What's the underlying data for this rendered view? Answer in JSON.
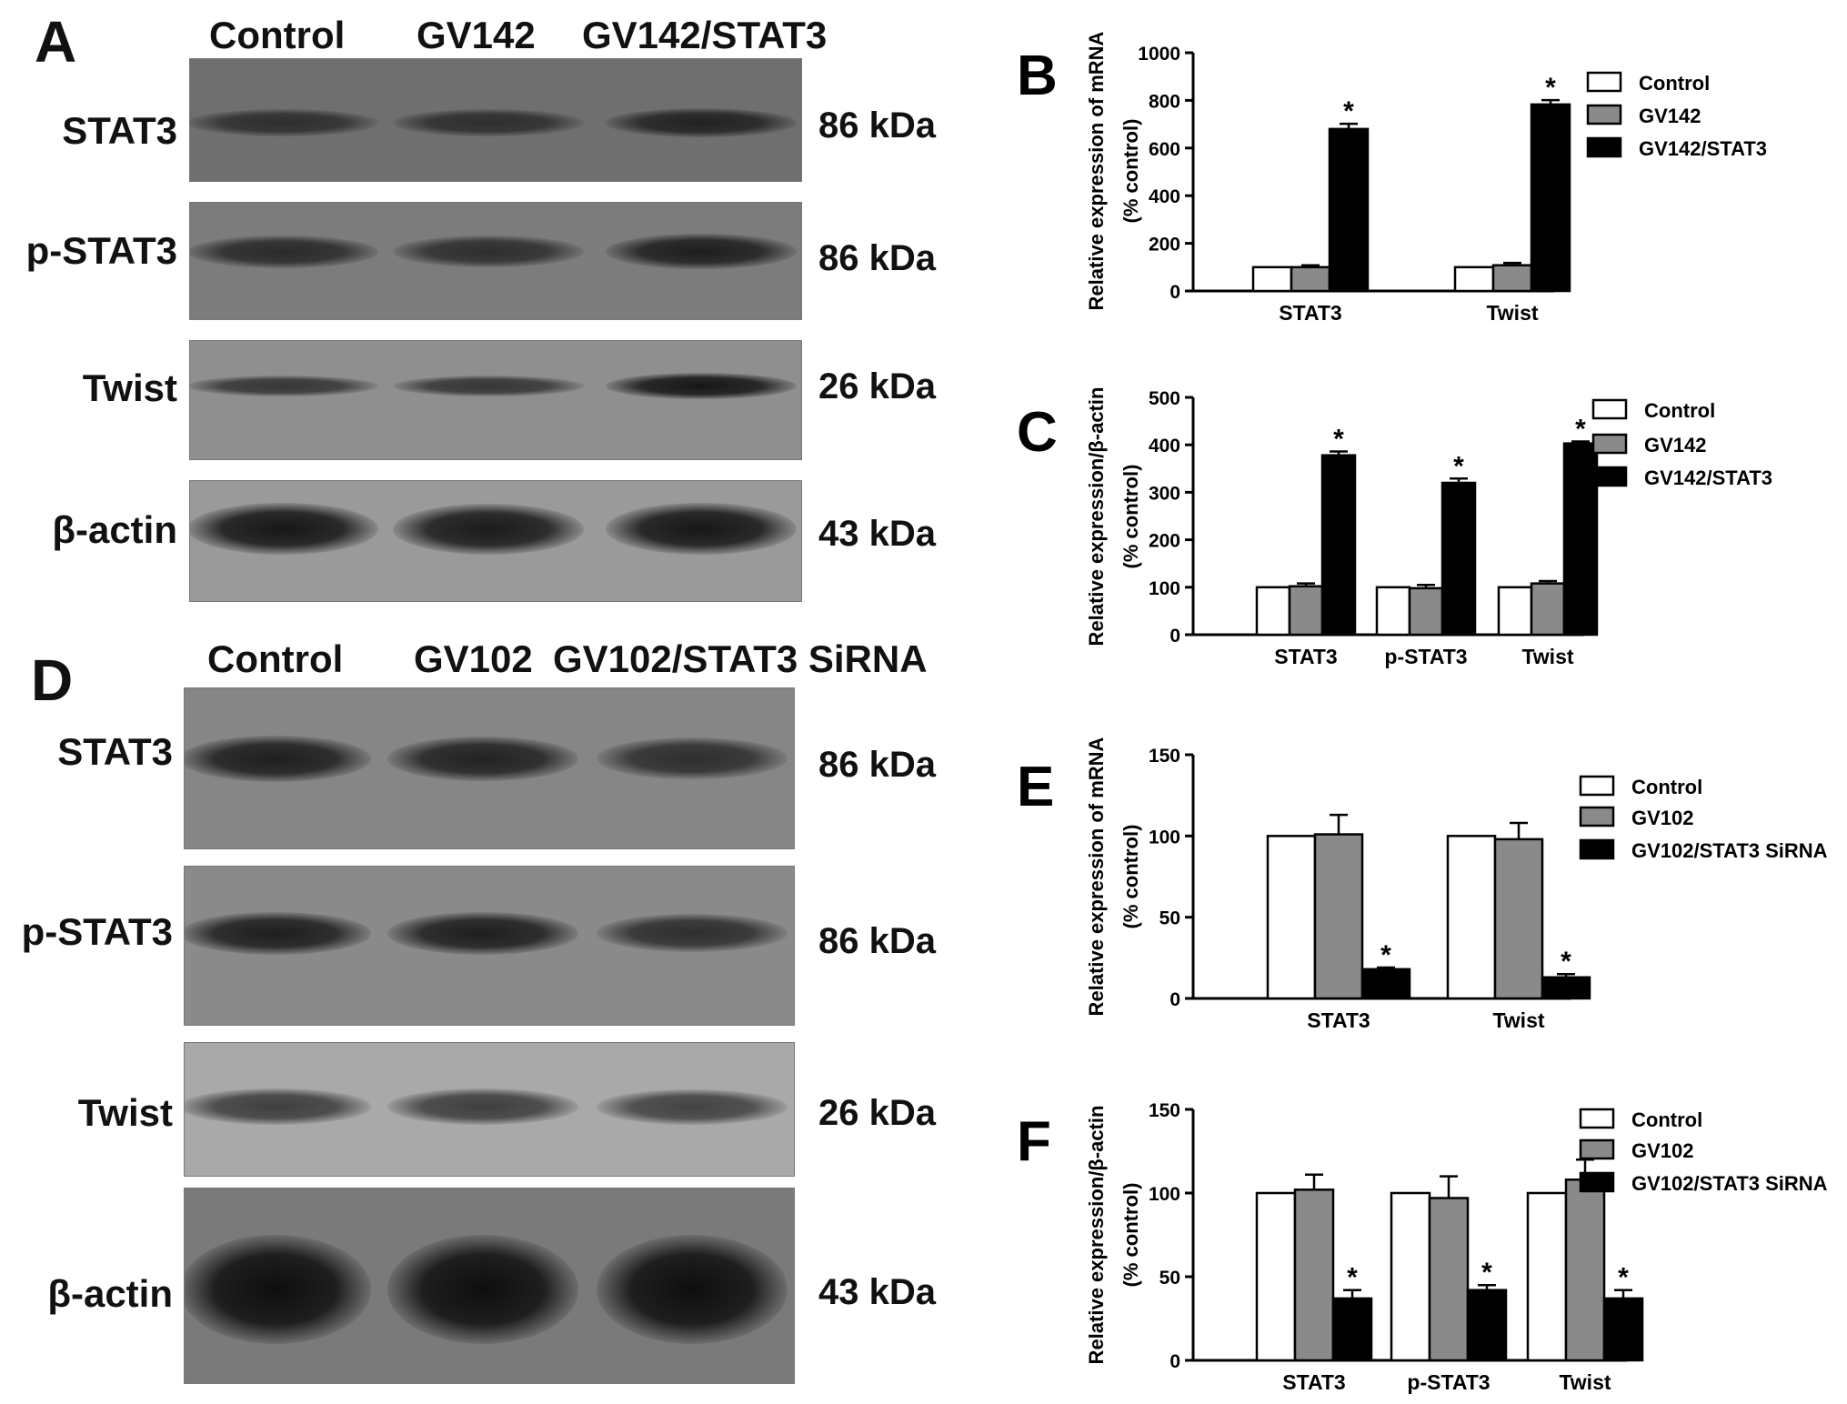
{
  "blot_top": {
    "panel_label": "A",
    "lanes": [
      "Control",
      "GV142",
      "GV142/STAT3"
    ],
    "rows": [
      {
        "label": "STAT3",
        "kda": "86 kDa",
        "intensity": [
          0.55,
          0.55,
          0.7
        ]
      },
      {
        "label": "p-STAT3",
        "kda": "86 kDa",
        "intensity": [
          0.6,
          0.55,
          0.75
        ]
      },
      {
        "label": "Twist",
        "kda": "26 kDa",
        "intensity": [
          0.45,
          0.45,
          0.85
        ]
      },
      {
        "label": "β-actin",
        "kda": "43 kDa",
        "intensity": [
          0.85,
          0.8,
          0.85
        ]
      }
    ]
  },
  "blot_bottom": {
    "panel_label": "D",
    "lanes": [
      "Control",
      "GV102",
      "GV102/STAT3 SiRNA"
    ],
    "rows": [
      {
        "label": "STAT3",
        "kda": "86 kDa",
        "intensity": [
          0.75,
          0.7,
          0.55
        ]
      },
      {
        "label": "p-STAT3",
        "kda": "86 kDa",
        "intensity": [
          0.75,
          0.75,
          0.55
        ]
      },
      {
        "label": "Twist",
        "kda": "26 kDa",
        "intensity": [
          0.35,
          0.35,
          0.3
        ]
      },
      {
        "label": "β-actin",
        "kda": "43 kDa",
        "intensity": [
          0.95,
          0.95,
          0.95
        ]
      }
    ]
  },
  "colors": {
    "control": "#ffffff",
    "mid": "#8a8a8a",
    "dark": "#000000",
    "axis": "#000000"
  },
  "chart_data": [
    {
      "panel_label": "B",
      "type": "bar",
      "categories": [
        "STAT3",
        "Twist"
      ],
      "series": [
        {
          "name": "Control",
          "values": [
            100,
            100
          ],
          "errors": [
            0,
            0
          ]
        },
        {
          "name": "GV142",
          "values": [
            100,
            108
          ],
          "errors": [
            8,
            10
          ]
        },
        {
          "name": "GV142/STAT3",
          "values": [
            680,
            783
          ],
          "errors": [
            22,
            18
          ]
        }
      ],
      "significant": [
        [
          false,
          false
        ],
        [
          false,
          false
        ],
        [
          true,
          true
        ]
      ],
      "significance_marker": "*",
      "ylabel_line1": "Relative expression of mRNA",
      "ylabel_line2": "(% control)",
      "ylim": [
        0,
        1000
      ],
      "yticks": [
        0,
        200,
        400,
        600,
        800,
        1000
      ],
      "legend_position": "right"
    },
    {
      "panel_label": "C",
      "type": "bar",
      "categories": [
        "STAT3",
        "p-STAT3",
        "Twist"
      ],
      "series": [
        {
          "name": "Control",
          "values": [
            100,
            100,
            100
          ],
          "errors": [
            0,
            0,
            0
          ]
        },
        {
          "name": "GV142",
          "values": [
            102,
            98,
            108
          ],
          "errors": [
            6,
            7,
            5
          ]
        },
        {
          "name": "GV142/STAT3",
          "values": [
            378,
            320,
            403
          ],
          "errors": [
            8,
            9,
            4
          ]
        }
      ],
      "significant": [
        [
          false,
          false,
          false
        ],
        [
          false,
          false,
          false
        ],
        [
          true,
          true,
          true
        ]
      ],
      "significance_marker": "*",
      "ylabel_line1": "Relative expression/β-actin",
      "ylabel_line2": "(% control)",
      "ylim": [
        0,
        500
      ],
      "yticks": [
        0,
        100,
        200,
        300,
        400,
        500
      ],
      "legend_position": "right"
    },
    {
      "panel_label": "E",
      "type": "bar",
      "categories": [
        "STAT3",
        "Twist"
      ],
      "series": [
        {
          "name": "Control",
          "values": [
            100,
            100
          ],
          "errors": [
            0,
            0
          ]
        },
        {
          "name": "GV102",
          "values": [
            101,
            98
          ],
          "errors": [
            12,
            10
          ]
        },
        {
          "name": "GV102/STAT3 SiRNA",
          "values": [
            18,
            13
          ],
          "errors": [
            1,
            2
          ]
        }
      ],
      "significant": [
        [
          false,
          false
        ],
        [
          false,
          false
        ],
        [
          true,
          true
        ]
      ],
      "significance_marker": "*",
      "ylabel_line1": "Relative expression of mRNA",
      "ylabel_line2": "(% control)",
      "ylim": [
        0,
        150
      ],
      "yticks": [
        0,
        50,
        100,
        150
      ],
      "legend_position": "right"
    },
    {
      "panel_label": "F",
      "type": "bar",
      "categories": [
        "STAT3",
        "p-STAT3",
        "Twist"
      ],
      "series": [
        {
          "name": "Control",
          "values": [
            100,
            100,
            100
          ],
          "errors": [
            0,
            0,
            0
          ]
        },
        {
          "name": "GV102",
          "values": [
            102,
            97,
            108
          ],
          "errors": [
            9,
            13,
            12
          ]
        },
        {
          "name": "GV102/STAT3 SiRNA",
          "values": [
            37,
            42,
            37
          ],
          "errors": [
            5,
            3,
            5
          ]
        }
      ],
      "significant": [
        [
          false,
          false,
          false
        ],
        [
          false,
          false,
          false
        ],
        [
          true,
          true,
          true
        ]
      ],
      "significance_marker": "*",
      "ylabel_line1": "Relative expression/β-actin",
      "ylabel_line2": "(% control)",
      "ylim": [
        0,
        150
      ],
      "yticks": [
        0,
        50,
        100,
        150
      ],
      "legend_position": "right"
    }
  ]
}
